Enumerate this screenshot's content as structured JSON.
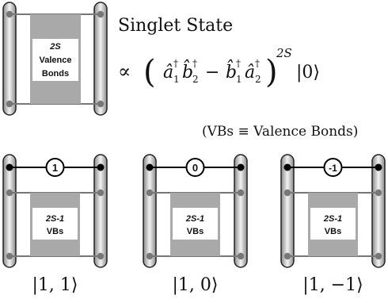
{
  "top": {
    "box_line1": "2S",
    "box_line2": "Valence",
    "box_line3": "Bonds",
    "title": "Singlet State",
    "formula": {
      "prop": "∝",
      "open": "(",
      "a1": "â",
      "b2": "b̂",
      "minus": "−",
      "b1": "b̂",
      "a2": "â",
      "dagger": "†",
      "sub1": "1",
      "sub2": "2",
      "close": ")",
      "exp": "2S",
      "vac": "|0⟩"
    }
  },
  "note": "(VBs ≡ Valence Bonds)",
  "states": [
    {
      "bond_label": "1",
      "box_line1": "2S-1",
      "box_line2": "VBs",
      "ket": "|1, 1⟩"
    },
    {
      "bond_label": "0",
      "box_line1": "2S-1",
      "box_line2": "VBs",
      "ket": "|1, 0⟩"
    },
    {
      "bond_label": "-1",
      "box_line1": "2S-1",
      "box_line2": "VBs",
      "ket": "|1, −1⟩"
    }
  ],
  "colors": {
    "rail_dark": "#8a8a8a",
    "rail_light": "#f2f2f2",
    "box_fill": "#a9a9a9",
    "line": "#777777",
    "site_dot": "#777777",
    "bond_dot": "#000000"
  }
}
